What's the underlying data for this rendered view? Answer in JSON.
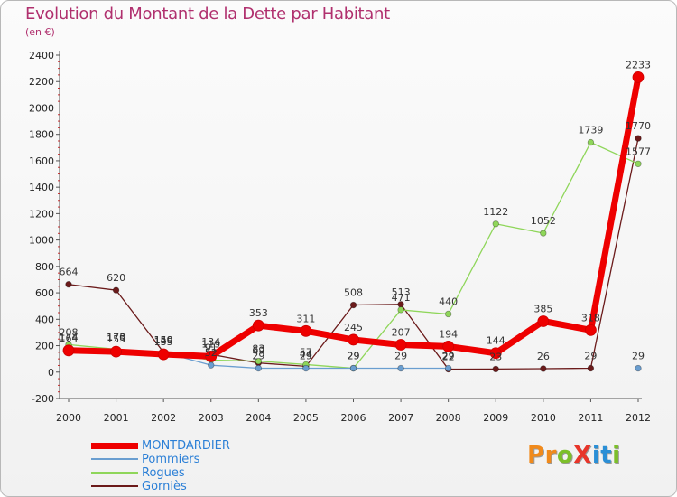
{
  "title": "Evolution du Montant de la Dette par Habitant",
  "subtitle": "(en €)",
  "brand": {
    "text": "ProXiti",
    "colors": [
      "#f08a1c",
      "#f08a1c",
      "#7cbf2a",
      "#e8352a",
      "#2b8fd6",
      "#2b8fd6",
      "#7cbf2a"
    ]
  },
  "chart_data": {
    "type": "line",
    "title": "Evolution du Montant de la Dette par Habitant",
    "ylabel": "(en €)",
    "xlabel": "",
    "ylim": [
      -200,
      2400
    ],
    "yticks": [
      -200,
      0,
      200,
      400,
      600,
      800,
      1000,
      1200,
      1400,
      1600,
      1800,
      2000,
      2200,
      2400
    ],
    "x": [
      "2000",
      "2001",
      "2002",
      "2003",
      "2004",
      "2005",
      "2006",
      "2007",
      "2008",
      "2009",
      "2010",
      "2011",
      "2012"
    ],
    "grid": false,
    "legend": "bottom-left",
    "series": [
      {
        "name": "MONTDARDIER",
        "color": "#ee0000",
        "values": [
          164,
          155,
          135,
          119,
          353,
          311,
          245,
          207,
          194,
          144,
          385,
          318,
          2233
        ]
      },
      {
        "name": "Pommiers",
        "color": "#6a9ed0",
        "values": [
          174,
          170,
          150,
          52,
          29,
          29,
          29,
          29,
          29,
          null,
          null,
          null,
          29
        ]
      },
      {
        "name": "Rogues",
        "color": "#8fd65a",
        "values": [
          208,
          173,
          149,
          91,
          83,
          57,
          29,
          471,
          440,
          1122,
          1052,
          1739,
          1577
        ]
      },
      {
        "name": "Gorniès",
        "color": "#6b1a1a",
        "values": [
          664,
          620,
          150,
          134,
          69,
          44,
          508,
          513,
          22,
          23,
          26,
          29,
          1770
        ]
      }
    ]
  }
}
